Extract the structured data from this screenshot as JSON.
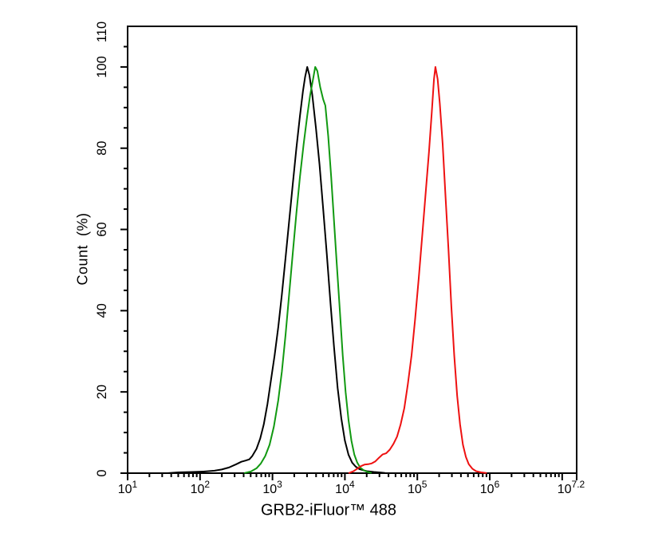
{
  "page": {
    "background": "#ffffff"
  },
  "chart_data": {
    "type": "line",
    "subtype": "flow-cytometry-histogram-overlay",
    "title": "",
    "xlabel": "GRB2-iFluor™ 488",
    "ylabel": "Count  (%)",
    "x_scale": "log10",
    "x_log_range": [
      1,
      7.2
    ],
    "ylim": [
      0,
      110
    ],
    "grid": false,
    "legend": null,
    "axis_color": "#000000",
    "x_ticks": [
      {
        "log": 1,
        "label_base": "10",
        "label_exp": "1"
      },
      {
        "log": 2,
        "label_base": "10",
        "label_exp": "2"
      },
      {
        "log": 3,
        "label_base": "10",
        "label_exp": "3"
      },
      {
        "log": 4,
        "label_base": "10",
        "label_exp": "4"
      },
      {
        "log": 5,
        "label_base": "10",
        "label_exp": "5"
      },
      {
        "log": 6,
        "label_base": "10",
        "label_exp": "6"
      },
      {
        "log": 7,
        "label_base": null,
        "label_exp": null
      },
      {
        "log": 7.2,
        "label_base": "10",
        "label_exp": "7.2"
      }
    ],
    "y_major_ticks": [
      0,
      20,
      40,
      60,
      80,
      100
    ],
    "y_minor_step": 5,
    "y_axis_top_label": "110",
    "series": [
      {
        "name": "black",
        "color": "#000000",
        "peak_log10_x": 3.48,
        "peak_percent": 100,
        "points": [
          [
            1.55,
            0.0
          ],
          [
            1.7,
            0.2
          ],
          [
            1.9,
            0.3
          ],
          [
            2.05,
            0.4
          ],
          [
            2.2,
            0.6
          ],
          [
            2.3,
            0.9
          ],
          [
            2.4,
            1.4
          ],
          [
            2.5,
            2.2
          ],
          [
            2.57,
            2.8
          ],
          [
            2.63,
            3.1
          ],
          [
            2.68,
            3.4
          ],
          [
            2.72,
            4.2
          ],
          [
            2.78,
            6.0
          ],
          [
            2.83,
            8.5
          ],
          [
            2.88,
            12
          ],
          [
            2.93,
            17
          ],
          [
            2.98,
            23
          ],
          [
            3.03,
            29
          ],
          [
            3.08,
            36
          ],
          [
            3.13,
            44
          ],
          [
            3.18,
            53
          ],
          [
            3.23,
            62
          ],
          [
            3.28,
            71
          ],
          [
            3.33,
            80
          ],
          [
            3.38,
            88
          ],
          [
            3.42,
            94
          ],
          [
            3.45,
            97.5
          ],
          [
            3.48,
            100
          ],
          [
            3.51,
            98
          ],
          [
            3.55,
            93
          ],
          [
            3.6,
            85
          ],
          [
            3.65,
            76
          ],
          [
            3.7,
            65
          ],
          [
            3.75,
            54
          ],
          [
            3.8,
            42
          ],
          [
            3.85,
            31
          ],
          [
            3.9,
            21
          ],
          [
            3.95,
            13.5
          ],
          [
            4.0,
            8
          ],
          [
            4.05,
            4.5
          ],
          [
            4.1,
            2.6
          ],
          [
            4.15,
            1.6
          ],
          [
            4.2,
            1.0
          ],
          [
            4.3,
            0.5
          ],
          [
            4.4,
            0.3
          ],
          [
            4.5,
            0.15
          ],
          [
            4.55,
            0.05
          ]
        ]
      },
      {
        "name": "green",
        "color": "#119911",
        "peak_log10_x": 3.59,
        "peak_percent": 100,
        "points": [
          [
            2.62,
            0.05
          ],
          [
            2.7,
            0.4
          ],
          [
            2.78,
            1.2
          ],
          [
            2.84,
            2.4
          ],
          [
            2.9,
            4.2
          ],
          [
            2.96,
            7
          ],
          [
            3.02,
            11.5
          ],
          [
            3.08,
            18
          ],
          [
            3.13,
            25
          ],
          [
            3.18,
            34
          ],
          [
            3.23,
            44
          ],
          [
            3.28,
            54
          ],
          [
            3.33,
            64
          ],
          [
            3.38,
            73
          ],
          [
            3.43,
            81
          ],
          [
            3.48,
            88
          ],
          [
            3.52,
            93
          ],
          [
            3.56,
            97
          ],
          [
            3.59,
            100
          ],
          [
            3.62,
            99
          ],
          [
            3.66,
            95
          ],
          [
            3.7,
            92
          ],
          [
            3.73,
            90.5
          ],
          [
            3.77,
            83
          ],
          [
            3.81,
            73
          ],
          [
            3.85,
            62
          ],
          [
            3.89,
            51
          ],
          [
            3.93,
            40
          ],
          [
            3.97,
            29
          ],
          [
            4.01,
            20
          ],
          [
            4.05,
            13
          ],
          [
            4.09,
            8
          ],
          [
            4.13,
            4.6
          ],
          [
            4.17,
            2.6
          ],
          [
            4.21,
            1.4
          ],
          [
            4.26,
            0.7
          ],
          [
            4.31,
            0.3
          ],
          [
            4.36,
            0.1
          ]
        ]
      },
      {
        "name": "red",
        "color": "#ee1111",
        "peak_log10_x": 5.25,
        "peak_percent": 100,
        "points": [
          [
            4.06,
            0.05
          ],
          [
            4.12,
            0.5
          ],
          [
            4.17,
            1.1
          ],
          [
            4.22,
            1.7
          ],
          [
            4.27,
            2.1
          ],
          [
            4.32,
            2.2
          ],
          [
            4.37,
            2.4
          ],
          [
            4.42,
            2.9
          ],
          [
            4.47,
            3.8
          ],
          [
            4.52,
            4.6
          ],
          [
            4.57,
            4.9
          ],
          [
            4.62,
            5.8
          ],
          [
            4.67,
            7.2
          ],
          [
            4.72,
            9
          ],
          [
            4.77,
            12
          ],
          [
            4.82,
            16
          ],
          [
            4.87,
            22
          ],
          [
            4.92,
            29
          ],
          [
            4.97,
            38
          ],
          [
            5.02,
            48
          ],
          [
            5.07,
            59
          ],
          [
            5.12,
            70
          ],
          [
            5.16,
            79
          ],
          [
            5.2,
            89
          ],
          [
            5.23,
            97
          ],
          [
            5.25,
            100
          ],
          [
            5.28,
            97
          ],
          [
            5.31,
            91
          ],
          [
            5.35,
            81
          ],
          [
            5.39,
            68
          ],
          [
            5.43,
            55
          ],
          [
            5.47,
            41
          ],
          [
            5.51,
            29
          ],
          [
            5.55,
            19
          ],
          [
            5.59,
            12
          ],
          [
            5.63,
            7
          ],
          [
            5.67,
            4
          ],
          [
            5.71,
            2.2
          ],
          [
            5.76,
            1.1
          ],
          [
            5.81,
            0.5
          ],
          [
            5.88,
            0.2
          ],
          [
            5.95,
            0.05
          ]
        ]
      }
    ]
  }
}
